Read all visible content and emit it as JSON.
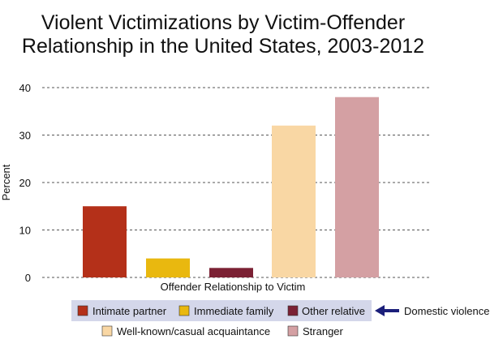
{
  "chart_data": {
    "type": "bar",
    "title_lines": [
      "Violent Victimizations by Victim-Offender",
      "Relationship in the United States, 2003-2012"
    ],
    "xlabel": "Offender Relationship to Victim",
    "ylabel": "Percent",
    "ylim": [
      0,
      40
    ],
    "yticks": [
      0,
      10,
      20,
      30,
      40
    ],
    "grid": "horizontal dashed",
    "categories": [
      "Intimate partner",
      "Immediate family",
      "Other relative",
      "Well-known/casual acquaintance",
      "Stranger"
    ],
    "values": [
      15,
      4,
      2,
      32,
      38
    ],
    "colors": [
      "#b43019",
      "#e9b80f",
      "#7b2134",
      "#f9d7a4",
      "#d4a0a3"
    ],
    "legend": {
      "placement": "bottom",
      "group_note": "Domestic violence",
      "group_highlight_color": "#d4d7ea",
      "arrow_color": "#1b1f7a"
    }
  }
}
